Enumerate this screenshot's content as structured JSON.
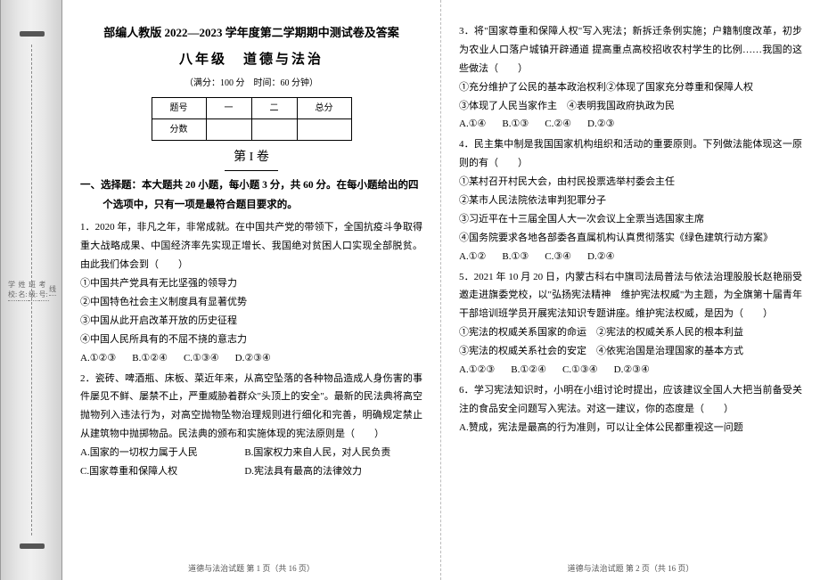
{
  "binding": {
    "labels": [
      "线",
      "考号:",
      "班级:",
      "姓名:",
      "学校:"
    ]
  },
  "header": {
    "main_title": "部编人教版 2022—2023 学年度第二学期期中测试卷及答案",
    "sub_title": "八年级　道德与法治",
    "info": "（满分：100 分　时间：60 分钟）",
    "score_headers": [
      "题号",
      "一",
      "二",
      "总分"
    ],
    "score_row_label": "分数",
    "section_label": "第 I 卷"
  },
  "instructions": "一、选择题：本大题共 20 小题，每小题 3 分，共 60 分。在每小题给出的四个选项中，只有一项是最符合题目要求的。",
  "q1": {
    "stem": "1．2020 年，非凡之年，非常成就。在中国共产党的带领下，全国抗疫斗争取得重大战略成果、中国经济率先实现正增长、我国绝对贫困人口实现全部脱贫。由此我们体会到（　　）",
    "o1": "①中国共产党具有无比坚强的领导力",
    "o2": "②中国特色社会主义制度具有显著优势",
    "o3": "③中国从此开启改革开放的历史征程",
    "o4": "④中国人民所具有的不屈不挠的意志力",
    "a": "A.①②③",
    "b": "B.①②④",
    "c": "C.①③④",
    "d": "D.②③④"
  },
  "q2": {
    "stem": "2．瓷砖、啤酒瓶、床板、菜近年来，从高空坠落的各种物品造成人身伤害的事件屡见不鲜、屡禁不止，严重威胁着群众\"头顶上的安全\"。最新的民法典将高空抛物列入违法行为，对高空抛物坠物治理规则进行细化和完善，明确规定禁止从建筑物中抛掷物品。民法典的颁布和实施体现的宪法原则是（　　）",
    "a": "A.国家的一切权力属于人民",
    "b": "B.国家权力来自人民，对人民负责",
    "c": "C.国家尊重和保障人权",
    "d": "D.宪法具有最高的法律效力"
  },
  "q3": {
    "stem": "3．将\"国家尊重和保障人权\"写入宪法；新拆迁条例实施；户籍制度改革，初步为农业人口落户城镇开辟通道 提高重点高校招收农村学生的比例……我国的这些做法（　　）",
    "o1": "①充分维护了公民的基本政治权利②体现了国家充分尊重和保障人权",
    "o2": "③体现了人民当家作主　④表明我国政府执政为民",
    "a": "A.①④",
    "b": "B.①③",
    "c": "C.②④",
    "d": "D.②③"
  },
  "q4": {
    "stem": "4．民主集中制是我国国家机构组织和活动的重要原则。下列做法能体现这一原则的有（　　）",
    "o1": "①某村召开村民大会，由村民投票选举村委会主任",
    "o2": "②某市人民法院依法审判犯罪分子",
    "o3": "③习近平在十三届全国人大一次会议上全票当选国家主席",
    "o4": "④国务院要求各地各部委各直属机构认真贯彻落实《绿色建筑行动方案》",
    "a": "A.①②",
    "b": "B.①③",
    "c": "C.③④",
    "d": "D.②④"
  },
  "q5": {
    "stem": "5．2021 年 10 月 20 日，内蒙古科右中旗司法局普法与依法治理股股长赵艳丽受邀走进旗委党校，以\"弘扬宪法精神　维护宪法权威\"为主题，为全旗第十届青年干部培训班学员开展宪法知识专题讲座。维护宪法权威，是因为（　　）",
    "o1": "①宪法的权威关系国家的命运　②宪法的权威关系人民的根本利益",
    "o2": "③宪法的权威关系社会的安定　④依宪治国是治理国家的基本方式",
    "a": "A.①②③",
    "b": "B.①②④",
    "c": "C.①③④",
    "d": "D.②③④"
  },
  "q6": {
    "stem": "6．学习宪法知识时，小明在小组讨论时提出，应该建议全国人大把当前备受关注的食品安全问题写入宪法。对这一建议，你的态度是（　　）",
    "o1": "A.赞成，宪法是最高的行为准则，可以让全体公民都重视这一问题"
  },
  "footer_left": "道德与法治试题 第 1 页（共 16 页）",
  "footer_right": "道德与法治试题 第 2 页（共 16 页）"
}
